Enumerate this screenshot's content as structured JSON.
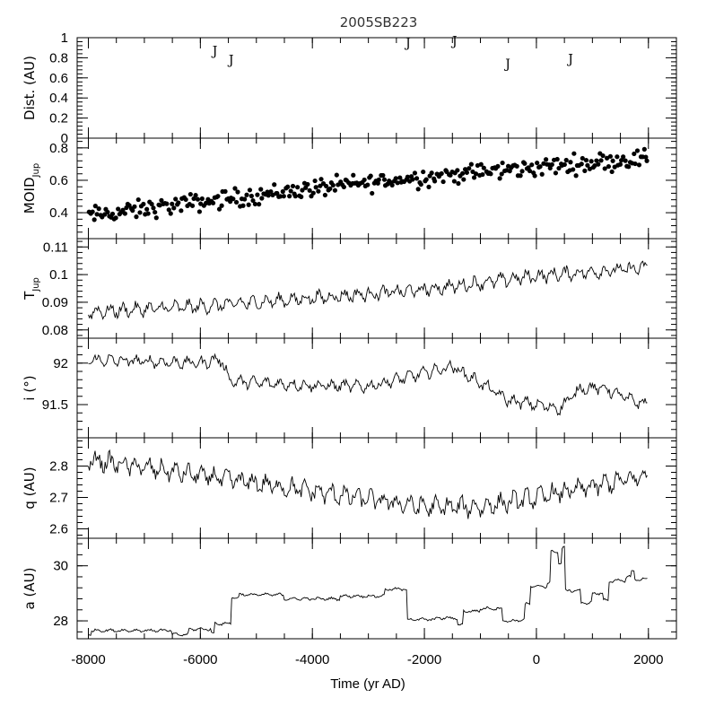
{
  "chart_data": {
    "title": "2005SB223",
    "xlabel": "Time (yr AD)",
    "x_range": [
      -8200,
      2500
    ],
    "x_ticks": [
      -8000,
      -6000,
      -4000,
      -2000,
      0,
      2000
    ],
    "x_tick_labels": [
      "-8000",
      "-6000",
      "-4000",
      "-2000",
      "0",
      "2000"
    ],
    "panels": [
      {
        "type": "scatter",
        "ylabel": "Dist. (AU)",
        "ylim": [
          0,
          1
        ],
        "y_ticks": [
          0,
          0.2,
          0.4,
          0.6,
          0.8,
          1
        ],
        "y_tick_labels": [
          "0",
          "0.2",
          "0.4",
          "0.6",
          "0.8",
          "1"
        ],
        "markers": [
          {
            "label": "J",
            "x": -5740,
            "y": 0.87
          },
          {
            "label": "J",
            "x": -5450,
            "y": 0.78
          },
          {
            "label": "J",
            "x": -2290,
            "y": 0.95
          },
          {
            "label": "J",
            "x": -1460,
            "y": 0.97
          },
          {
            "label": "J",
            "x": -510,
            "y": 0.74
          },
          {
            "label": "J",
            "x": 610,
            "y": 0.79
          }
        ]
      },
      {
        "type": "scatter",
        "ylabel": "MOID",
        "ylabel_sub": "Jup",
        "ylim": [
          0.24,
          0.86
        ],
        "y_ticks": [
          0.4,
          0.6,
          0.8
        ],
        "y_tick_labels": [
          "0.4",
          "0.6",
          "0.8"
        ],
        "trend": {
          "x": [
            -8000,
            -4000,
            -2000,
            0,
            2000
          ],
          "y": [
            0.38,
            0.55,
            0.62,
            0.68,
            0.74
          ]
        },
        "spread": 0.035,
        "n_points": 330
      },
      {
        "type": "line",
        "ylabel": "T",
        "ylabel_sub": "Jup",
        "ylim": [
          0.077,
          0.113
        ],
        "y_ticks": [
          0.08,
          0.09,
          0.1,
          0.11
        ],
        "y_tick_labels": [
          "0.08",
          "0.09",
          "0.1",
          "0.11"
        ],
        "trend": {
          "x": [
            -8000,
            -6000,
            -4000,
            -2000,
            0,
            2000
          ],
          "y": [
            0.0865,
            0.0885,
            0.0915,
            0.0945,
            0.0995,
            0.1025
          ]
        },
        "amplitude": 0.0028
      },
      {
        "type": "line",
        "ylabel": "i (°)",
        "ylim": [
          91.1,
          92.3
        ],
        "y_ticks": [
          91.5,
          92
        ],
        "y_tick_labels": [
          "91.5",
          "92"
        ],
        "trend": {
          "x": [
            -8000,
            -6000,
            -5650,
            -5450,
            -4000,
            -3000,
            -2500,
            -1500,
            -900,
            -500,
            0,
            400,
            800,
            1200,
            1700,
            2000
          ],
          "y": [
            92.04,
            92.0,
            92.05,
            91.78,
            91.73,
            91.72,
            91.8,
            91.96,
            91.72,
            91.55,
            91.5,
            91.45,
            91.7,
            91.7,
            91.55,
            91.5
          ]
        },
        "amplitude": 0.08
      },
      {
        "type": "line",
        "ylabel": "q (AU)",
        "ylim": [
          2.57,
          2.89
        ],
        "y_ticks": [
          2.6,
          2.7,
          2.8
        ],
        "y_tick_labels": [
          "2.6",
          "2.7",
          "2.8"
        ],
        "trend": {
          "x": [
            -8000,
            -6000,
            -4000,
            -2000,
            -1000,
            0,
            2000
          ],
          "y": [
            2.82,
            2.77,
            2.72,
            2.67,
            2.67,
            2.7,
            2.77
          ]
        },
        "amplitude": 0.035
      },
      {
        "type": "line",
        "ylabel": "a (AU)",
        "ylim": [
          27.35,
          31.0
        ],
        "y_ticks": [
          28,
          30
        ],
        "y_tick_labels": [
          "28",
          "30"
        ],
        "steps": [
          {
            "x": -8000,
            "y": 27.5
          },
          {
            "x": -7950,
            "y": 27.65
          },
          {
            "x": -6500,
            "y": 27.5
          },
          {
            "x": -6200,
            "y": 27.7
          },
          {
            "x": -5800,
            "y": 27.55
          },
          {
            "x": -5750,
            "y": 27.9
          },
          {
            "x": -5450,
            "y": 28.85
          },
          {
            "x": -5300,
            "y": 28.95
          },
          {
            "x": -4500,
            "y": 28.8
          },
          {
            "x": -3500,
            "y": 28.9
          },
          {
            "x": -2800,
            "y": 28.9
          },
          {
            "x": -2700,
            "y": 29.15
          },
          {
            "x": -2300,
            "y": 28.05
          },
          {
            "x": -1800,
            "y": 28.1
          },
          {
            "x": -1400,
            "y": 27.85
          },
          {
            "x": -1300,
            "y": 28.35
          },
          {
            "x": -1000,
            "y": 28.45
          },
          {
            "x": -600,
            "y": 28.0
          },
          {
            "x": -300,
            "y": 28.05
          },
          {
            "x": -200,
            "y": 28.6
          },
          {
            "x": -100,
            "y": 29.25
          },
          {
            "x": 200,
            "y": 29.4
          },
          {
            "x": 260,
            "y": 30.5
          },
          {
            "x": 400,
            "y": 30.1
          },
          {
            "x": 450,
            "y": 30.65
          },
          {
            "x": 520,
            "y": 29.1
          },
          {
            "x": 800,
            "y": 28.65
          },
          {
            "x": 1000,
            "y": 29.0
          },
          {
            "x": 1200,
            "y": 28.75
          },
          {
            "x": 1300,
            "y": 29.45
          },
          {
            "x": 1600,
            "y": 29.6
          },
          {
            "x": 1700,
            "y": 29.8
          },
          {
            "x": 1750,
            "y": 29.5
          },
          {
            "x": 1950,
            "y": 29.55
          }
        ],
        "amplitude": 0.06
      }
    ]
  }
}
